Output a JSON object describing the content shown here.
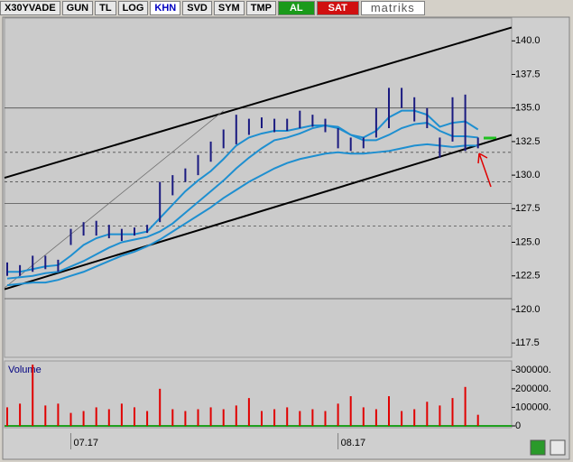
{
  "toolbar": {
    "symbol": "X30YVADE",
    "buttons": [
      "GUN",
      "TL",
      "LOG",
      "KHN",
      "SVD",
      "SYM",
      "TMP"
    ],
    "al": "AL",
    "sat": "SAT",
    "brand": "matriks"
  },
  "chart_data": {
    "type": "ohlc",
    "categories": [
      null,
      null,
      null,
      null,
      null,
      "07.17",
      null,
      null,
      null,
      null,
      null,
      null,
      null,
      null,
      null,
      null,
      null,
      null,
      null,
      null,
      null,
      null,
      null,
      null,
      null,
      null,
      "08.17",
      null,
      null,
      null,
      null,
      null,
      null,
      null,
      null,
      null,
      null,
      null
    ],
    "bars": [
      [
        122.5,
        123.5
      ],
      [
        122.5,
        123.3
      ],
      [
        122.8,
        124.0
      ],
      [
        123.0,
        124.0
      ],
      [
        122.8,
        123.7
      ],
      [
        124.8,
        126.0
      ],
      [
        125.5,
        126.5
      ],
      [
        125.5,
        126.6
      ],
      [
        125.3,
        126.3
      ],
      [
        125.1,
        126.0
      ],
      [
        125.5,
        126.1
      ],
      [
        125.7,
        126.3
      ],
      [
        126.5,
        129.5
      ],
      [
        128.5,
        130.0
      ],
      [
        129.5,
        130.5
      ],
      [
        130.0,
        131.5
      ],
      [
        131.0,
        132.5
      ],
      [
        132.0,
        133.4
      ],
      [
        132.3,
        134.5
      ],
      [
        133.0,
        134.2
      ],
      [
        133.5,
        134.3
      ],
      [
        133.2,
        134.2
      ],
      [
        133.3,
        134.2
      ],
      [
        133.5,
        134.8
      ],
      [
        133.6,
        134.5
      ],
      [
        133.2,
        134.2
      ],
      [
        132.0,
        133.5
      ],
      [
        131.8,
        132.8
      ],
      [
        132.0,
        132.8
      ],
      [
        132.8,
        135.0
      ],
      [
        133.5,
        136.5
      ],
      [
        135.0,
        136.5
      ],
      [
        134.0,
        135.8
      ],
      [
        133.5,
        135.0
      ],
      [
        131.3,
        132.8
      ],
      [
        132.5,
        135.8
      ],
      [
        131.8,
        136.0
      ],
      [
        132.0,
        132.8
      ]
    ],
    "bar_color": "#1a1a80",
    "moving_averages": [
      {
        "color": "#1e8fd0",
        "values": [
          122.8,
          122.8,
          123.0,
          123.2,
          123.3,
          124.0,
          124.8,
          125.3,
          125.6,
          125.6,
          125.6,
          125.8,
          126.8,
          127.8,
          128.8,
          129.6,
          130.3,
          131.2,
          132.2,
          132.8,
          133.1,
          133.3,
          133.3,
          133.5,
          133.7,
          133.7,
          133.5,
          133.0,
          132.8,
          133.3,
          134.3,
          134.8,
          134.8,
          134.5,
          133.6,
          133.9,
          134.0,
          133.4
        ]
      },
      {
        "color": "#1e8fd0",
        "values": [
          122.3,
          122.4,
          122.5,
          122.7,
          122.8,
          123.2,
          123.6,
          124.1,
          124.6,
          125.0,
          125.2,
          125.4,
          125.8,
          126.4,
          127.2,
          128.0,
          128.8,
          129.6,
          130.5,
          131.3,
          132.0,
          132.6,
          132.8,
          133.1,
          133.5,
          133.7,
          133.6,
          133.0,
          132.6,
          132.6,
          133.0,
          133.5,
          133.8,
          133.9,
          133.3,
          132.9,
          132.9,
          132.8
        ]
      },
      {
        "color": "#1e8fd0",
        "values": [
          121.8,
          121.9,
          122.0,
          122.0,
          122.2,
          122.5,
          122.8,
          123.2,
          123.6,
          124.0,
          124.3,
          124.7,
          125.2,
          125.8,
          126.4,
          127.0,
          127.6,
          128.3,
          128.9,
          129.5,
          130.0,
          130.5,
          130.9,
          131.2,
          131.4,
          131.6,
          131.7,
          131.6,
          131.6,
          131.7,
          131.8,
          132.0,
          132.2,
          132.3,
          132.2,
          132.1,
          132.2,
          132.2
        ]
      }
    ],
    "trendlines": [
      {
        "from": 129.8,
        "to": 141.0,
        "color": "#000000"
      },
      {
        "from": 121.5,
        "to": 133.0,
        "color": "#000000"
      },
      {
        "from": 121.6,
        "to": 134.8,
        "to_bar": 17,
        "color": "#707070"
      }
    ],
    "hlines": [
      {
        "value": 135.0,
        "dashed": false
      },
      {
        "value": 131.7,
        "dashed": true
      },
      {
        "value": 129.5,
        "dashed": true
      },
      {
        "value": 127.9,
        "dashed": false
      },
      {
        "value": 126.2,
        "dashed": true
      },
      {
        "value": 120.8,
        "dashed": false
      }
    ],
    "ylim": [
      116.5,
      141.7
    ],
    "yticks": [
      {
        "value": 117.5,
        "label": "117.5"
      },
      {
        "value": 120,
        "label": "120.0"
      },
      {
        "value": 122.5,
        "label": "122.5"
      },
      {
        "value": 125,
        "label": "125.0"
      },
      {
        "value": 127.5,
        "label": "127.5"
      },
      {
        "value": 130,
        "label": "130.0"
      },
      {
        "value": 132.5,
        "label": "132.5"
      },
      {
        "value": 135,
        "label": "135.0"
      },
      {
        "value": 137.5,
        "label": "137.5"
      },
      {
        "value": 140,
        "label": "140.0"
      }
    ],
    "volume": {
      "title": "Volume",
      "color": "#e00000",
      "values": [
        100000,
        120000,
        330000,
        110000,
        120000,
        70000,
        80000,
        100000,
        90000,
        120000,
        100000,
        80000,
        200000,
        90000,
        80000,
        90000,
        100000,
        90000,
        110000,
        150000,
        80000,
        90000,
        100000,
        80000,
        90000,
        80000,
        120000,
        160000,
        100000,
        90000,
        160000,
        80000,
        90000,
        130000,
        110000,
        150000,
        210000,
        60000
      ],
      "ylim": [
        0,
        350000
      ],
      "yticks": [
        0,
        {
          "value": 100000,
          "label": "100000."
        },
        {
          "value": 200000,
          "label": "200000."
        },
        {
          "value": 300000,
          "label": "300000."
        }
      ]
    }
  }
}
